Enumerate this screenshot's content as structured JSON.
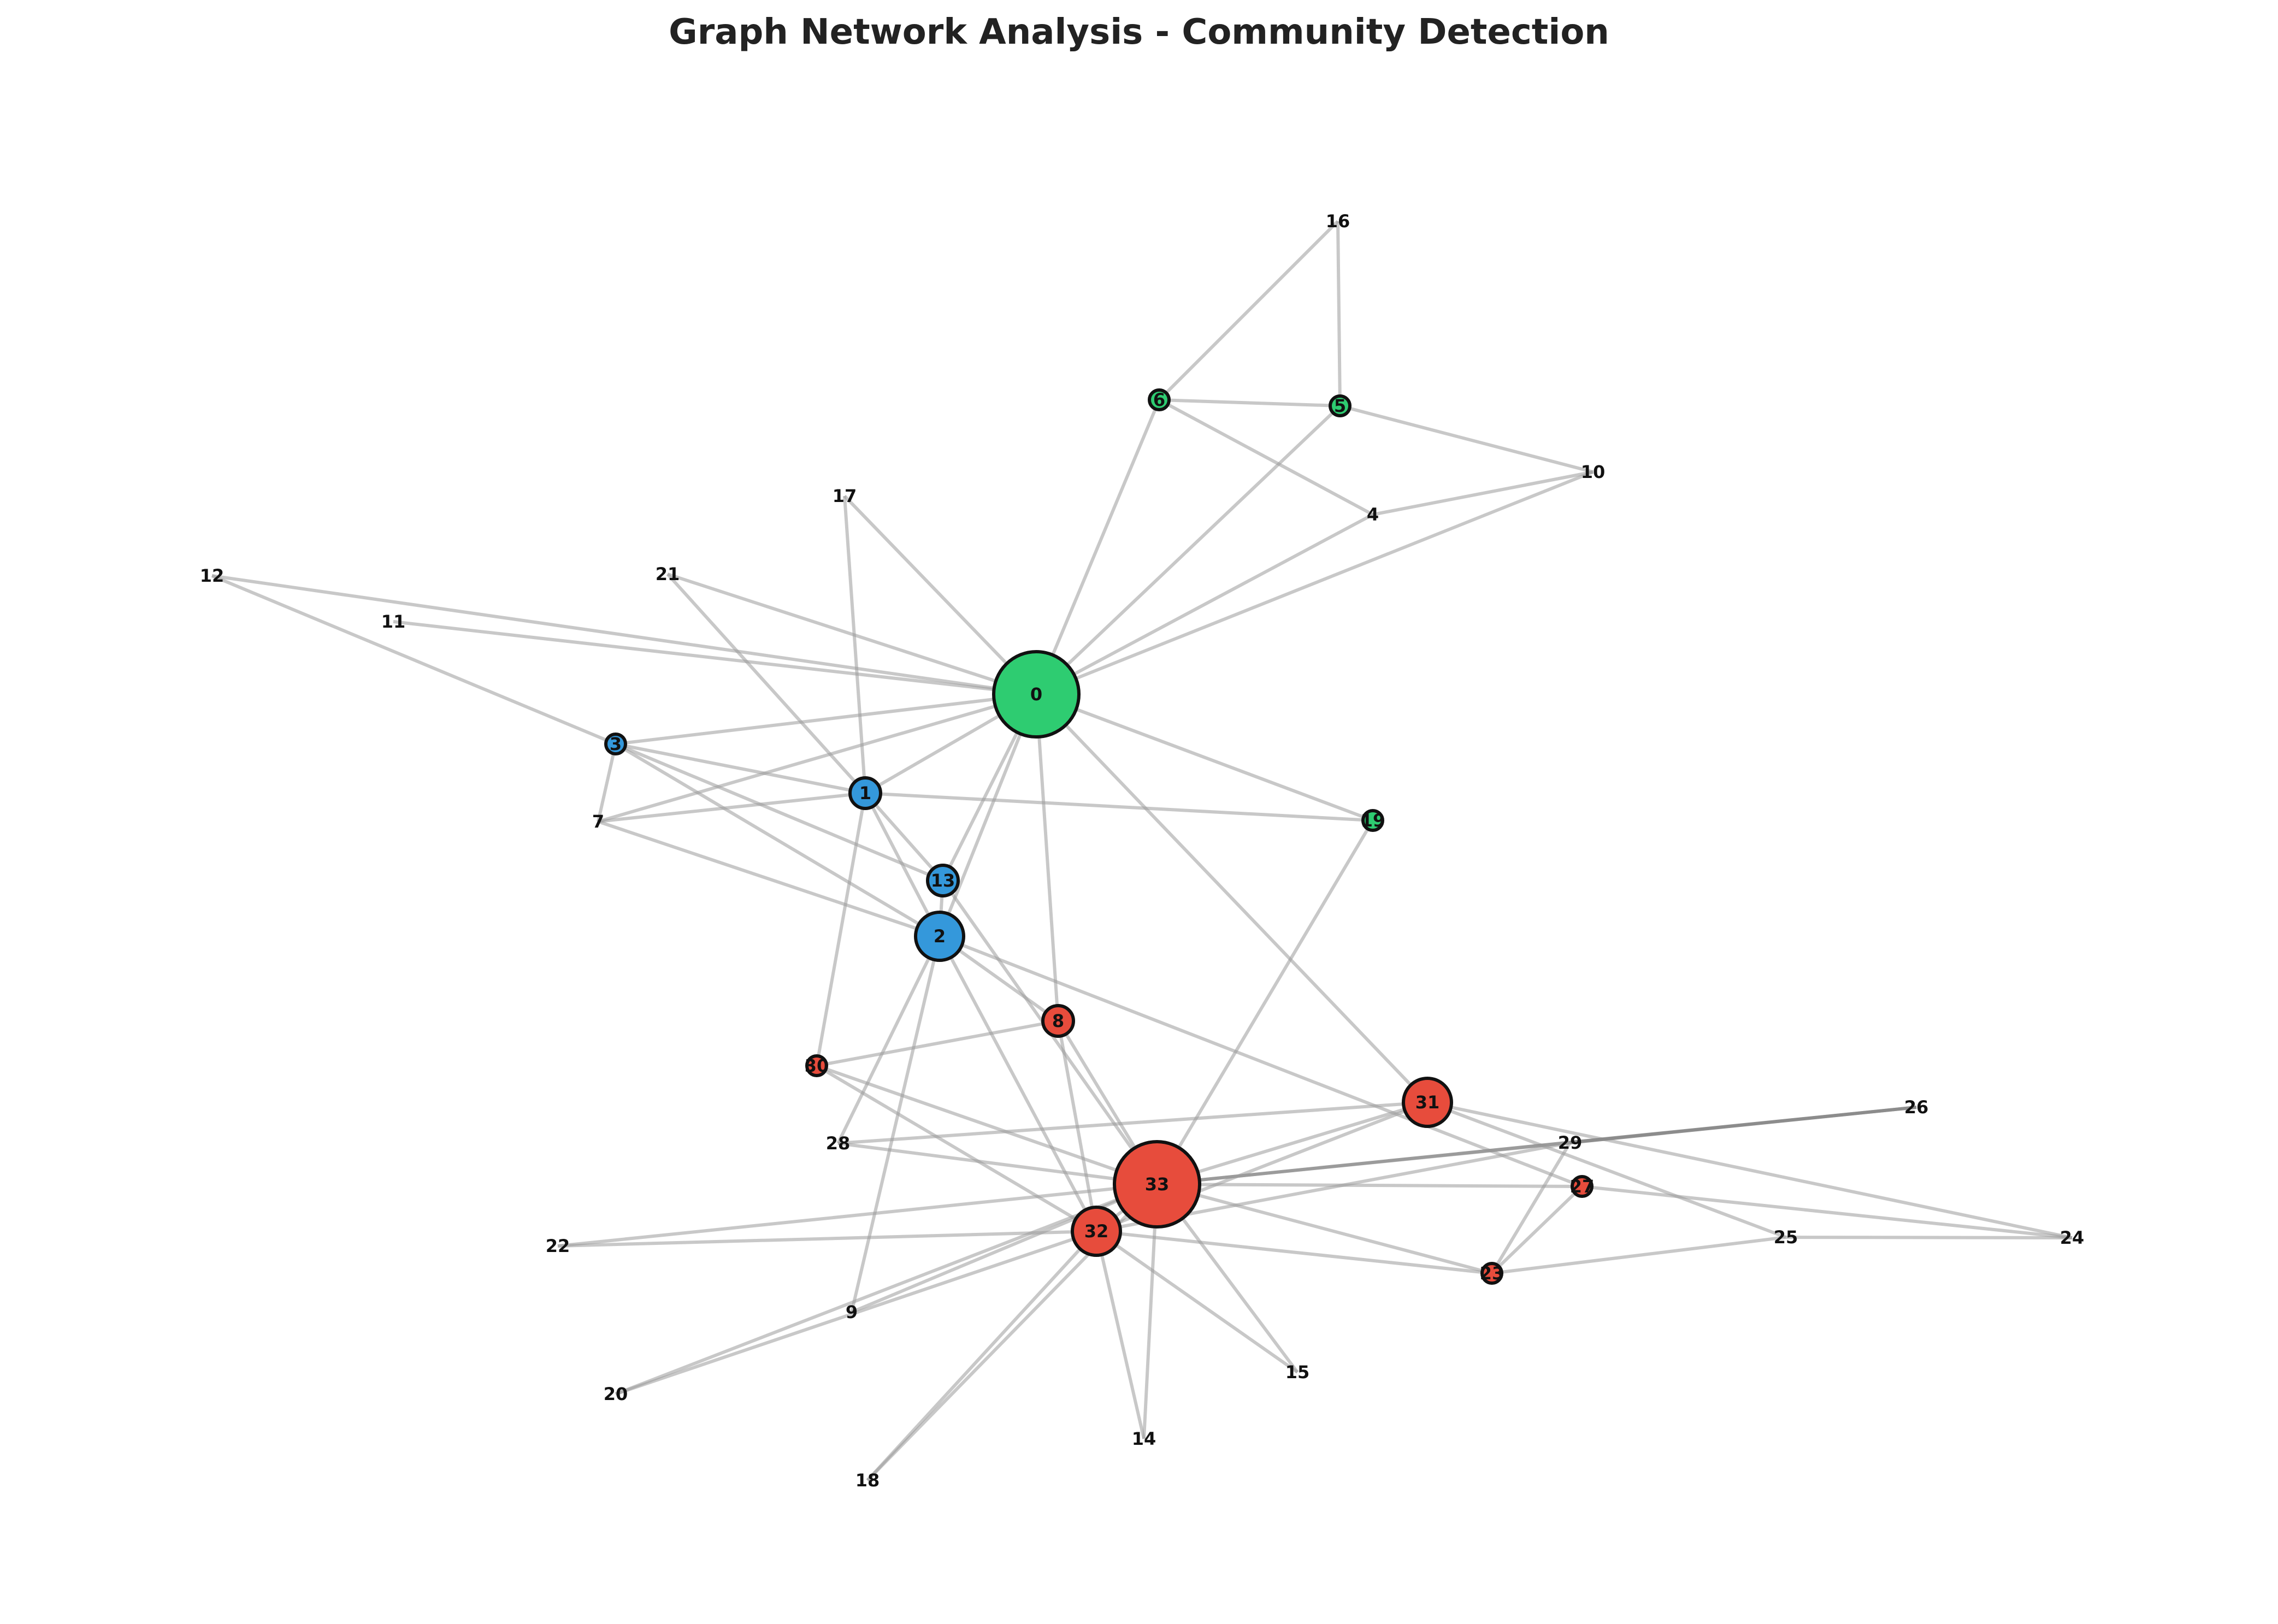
{
  "title": "Graph Network Analysis - Community Detection",
  "colors": {
    "community_a": "#2ecc71",
    "community_b": "#3498db",
    "community_c": "#e74c3c",
    "edge": "#9a9a9a"
  },
  "nodes": [
    {
      "id": "0",
      "community": "a",
      "size": "xl"
    },
    {
      "id": "1",
      "community": "b",
      "size": "s"
    },
    {
      "id": "2",
      "community": "b",
      "size": "m"
    },
    {
      "id": "3",
      "community": "b",
      "size": "xs"
    },
    {
      "id": "4",
      "community": "a",
      "size": "none"
    },
    {
      "id": "5",
      "community": "a",
      "size": "xs"
    },
    {
      "id": "6",
      "community": "a",
      "size": "xs"
    },
    {
      "id": "7",
      "community": "b",
      "size": "none"
    },
    {
      "id": "8",
      "community": "c",
      "size": "s"
    },
    {
      "id": "9",
      "community": "c",
      "size": "none"
    },
    {
      "id": "10",
      "community": "a",
      "size": "none"
    },
    {
      "id": "11",
      "community": "a",
      "size": "none"
    },
    {
      "id": "12",
      "community": "a",
      "size": "none"
    },
    {
      "id": "13",
      "community": "b",
      "size": "s"
    },
    {
      "id": "14",
      "community": "c",
      "size": "none"
    },
    {
      "id": "15",
      "community": "c",
      "size": "none"
    },
    {
      "id": "16",
      "community": "a",
      "size": "none"
    },
    {
      "id": "17",
      "community": "b",
      "size": "none"
    },
    {
      "id": "18",
      "community": "c",
      "size": "none"
    },
    {
      "id": "19",
      "community": "a",
      "size": "xs"
    },
    {
      "id": "20",
      "community": "c",
      "size": "none"
    },
    {
      "id": "21",
      "community": "b",
      "size": "none"
    },
    {
      "id": "22",
      "community": "c",
      "size": "none"
    },
    {
      "id": "23",
      "community": "c",
      "size": "xs"
    },
    {
      "id": "24",
      "community": "c",
      "size": "none"
    },
    {
      "id": "25",
      "community": "c",
      "size": "none"
    },
    {
      "id": "26",
      "community": "c",
      "size": "none"
    },
    {
      "id": "27",
      "community": "c",
      "size": "xs"
    },
    {
      "id": "28",
      "community": "c",
      "size": "none"
    },
    {
      "id": "29",
      "community": "c",
      "size": "none"
    },
    {
      "id": "30",
      "community": "c",
      "size": "xs"
    },
    {
      "id": "31",
      "community": "c",
      "size": "m"
    },
    {
      "id": "32",
      "community": "c",
      "size": "m"
    },
    {
      "id": "33",
      "community": "c",
      "size": "xl"
    }
  ],
  "edges": [
    [
      "0",
      "1"
    ],
    [
      "0",
      "2"
    ],
    [
      "0",
      "3"
    ],
    [
      "0",
      "4"
    ],
    [
      "0",
      "5"
    ],
    [
      "0",
      "6"
    ],
    [
      "0",
      "7"
    ],
    [
      "0",
      "8"
    ],
    [
      "0",
      "10"
    ],
    [
      "0",
      "11"
    ],
    [
      "0",
      "12"
    ],
    [
      "0",
      "13"
    ],
    [
      "0",
      "17"
    ],
    [
      "0",
      "19"
    ],
    [
      "0",
      "21"
    ],
    [
      "0",
      "31"
    ],
    [
      "1",
      "2"
    ],
    [
      "1",
      "3"
    ],
    [
      "1",
      "7"
    ],
    [
      "1",
      "13"
    ],
    [
      "1",
      "17"
    ],
    [
      "1",
      "19"
    ],
    [
      "1",
      "21"
    ],
    [
      "1",
      "30"
    ],
    [
      "2",
      "3"
    ],
    [
      "2",
      "7"
    ],
    [
      "2",
      "8"
    ],
    [
      "2",
      "9"
    ],
    [
      "2",
      "13"
    ],
    [
      "2",
      "27"
    ],
    [
      "2",
      "28"
    ],
    [
      "2",
      "32"
    ],
    [
      "3",
      "7"
    ],
    [
      "3",
      "12"
    ],
    [
      "3",
      "13"
    ],
    [
      "4",
      "6"
    ],
    [
      "4",
      "10"
    ],
    [
      "5",
      "6"
    ],
    [
      "5",
      "10"
    ],
    [
      "5",
      "16"
    ],
    [
      "6",
      "16"
    ],
    [
      "8",
      "30"
    ],
    [
      "8",
      "32"
    ],
    [
      "8",
      "33"
    ],
    [
      "9",
      "33"
    ],
    [
      "13",
      "33"
    ],
    [
      "14",
      "32"
    ],
    [
      "14",
      "33"
    ],
    [
      "15",
      "32"
    ],
    [
      "15",
      "33"
    ],
    [
      "18",
      "32"
    ],
    [
      "18",
      "33"
    ],
    [
      "19",
      "33"
    ],
    [
      "20",
      "32"
    ],
    [
      "20",
      "33"
    ],
    [
      "22",
      "32"
    ],
    [
      "22",
      "33"
    ],
    [
      "23",
      "25"
    ],
    [
      "23",
      "27"
    ],
    [
      "23",
      "29"
    ],
    [
      "23",
      "32"
    ],
    [
      "23",
      "33"
    ],
    [
      "24",
      "25"
    ],
    [
      "24",
      "27"
    ],
    [
      "24",
      "31"
    ],
    [
      "25",
      "31"
    ],
    [
      "26",
      "29"
    ],
    [
      "26",
      "33"
    ],
    [
      "27",
      "33"
    ],
    [
      "28",
      "31"
    ],
    [
      "28",
      "33"
    ],
    [
      "29",
      "32"
    ],
    [
      "29",
      "33"
    ],
    [
      "30",
      "32"
    ],
    [
      "30",
      "33"
    ],
    [
      "31",
      "32"
    ],
    [
      "31",
      "33"
    ],
    [
      "32",
      "33"
    ]
  ]
}
